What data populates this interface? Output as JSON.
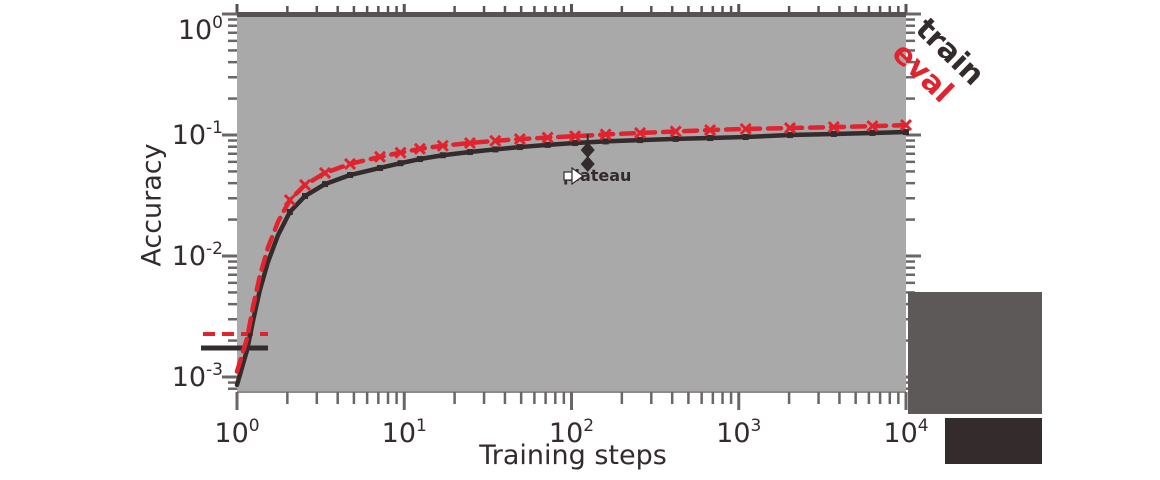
{
  "figure": {
    "background": "#FFFFFF"
  },
  "colors": {
    "plot_background": "#A9A9A9",
    "dark": "#342B2C",
    "red": "#E2232E",
    "tick_gray": "#6B6666",
    "top_spine": "#575152",
    "faded_block": "#5E5959"
  },
  "chart_data": {
    "type": "line",
    "title": "",
    "xlabel": "Training steps",
    "ylabel": "Accuracy",
    "x_scale": "log",
    "y_scale": "log",
    "x_range": [
      1,
      10000
    ],
    "y_range": [
      0.00065,
      1.0
    ],
    "x_ticks": [
      "10^0",
      "10^1",
      "10^2",
      "10^3",
      "10^4"
    ],
    "y_ticks": [
      "10^0",
      "10^-1",
      "10^-2",
      "10^-3"
    ],
    "grid": false,
    "legend_position": "lower-left-handles-and-rotated-right-labels",
    "x": [
      1,
      1.15,
      1.25,
      1.37,
      1.53,
      1.76,
      2.07,
      2.55,
      3.36,
      4.74,
      7.16,
      9.5,
      12.4,
      17,
      24.7,
      35,
      49.1,
      72,
      105,
      160,
      257,
      420,
      674,
      1100,
      2023,
      3700,
      6300,
      10000
    ],
    "series": [
      {
        "name": "train",
        "color": "#342B2C",
        "line_style": "solid",
        "marker": "square",
        "values": [
          0.00086,
          0.00168,
          0.00296,
          0.00522,
          0.0089,
          0.0149,
          0.0231,
          0.0313,
          0.0393,
          0.0467,
          0.0534,
          0.0585,
          0.0633,
          0.068,
          0.0723,
          0.076,
          0.0795,
          0.0828,
          0.0858,
          0.0885,
          0.0908,
          0.0928,
          0.0944,
          0.0962,
          0.0999,
          0.102,
          0.104,
          0.1058
        ]
      },
      {
        "name": "eval",
        "color": "#E2232E",
        "line_style": "dashed",
        "marker": "x",
        "values": [
          0.00111,
          0.0021,
          0.00387,
          0.00684,
          0.0117,
          0.0192,
          0.029,
          0.0387,
          0.0486,
          0.0577,
          0.066,
          0.0715,
          0.0768,
          0.0815,
          0.0858,
          0.0895,
          0.0925,
          0.0952,
          0.0978,
          0.101,
          0.1039,
          0.107,
          0.1099,
          0.1122,
          0.1141,
          0.1162,
          0.1184,
          0.1207
        ]
      }
    ],
    "annotation": {
      "text": "plateau",
      "arrow_icon": "white-right-arrow",
      "x": 125,
      "marker_values": [
        0.0752,
        0.0576
      ],
      "marker": "diamond"
    },
    "end_labels": [
      {
        "text": "train",
        "color": "#342B2C"
      },
      {
        "text": "eval",
        "color": "#E2232E"
      }
    ],
    "legend": {
      "entries": [
        {
          "label": "eval",
          "color": "#E2232E",
          "style": "dashed"
        },
        {
          "label": "train",
          "color": "#342B2C",
          "style": "solid"
        }
      ]
    }
  }
}
